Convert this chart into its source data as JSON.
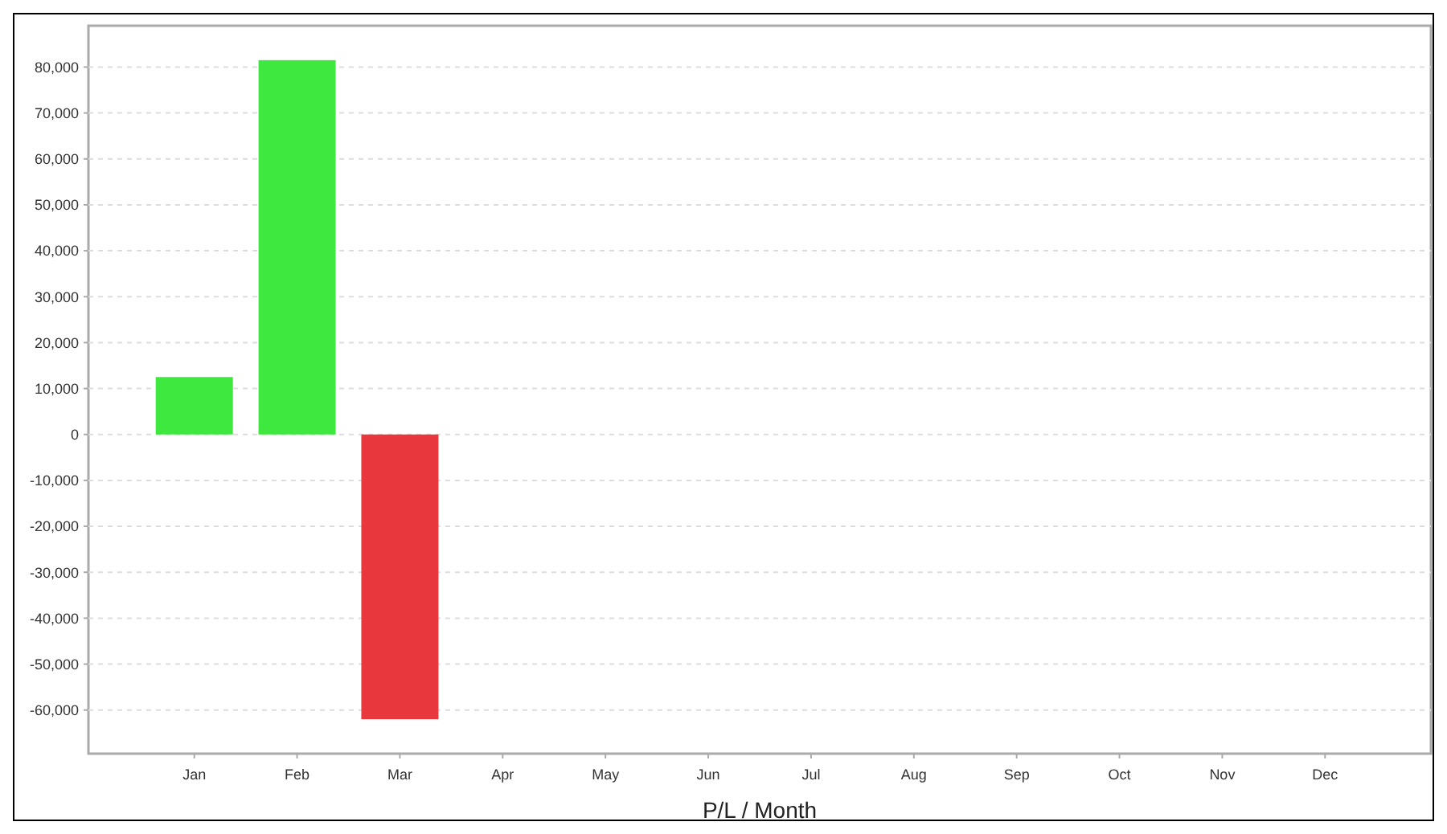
{
  "chart_data": {
    "type": "bar",
    "xlabel": "P/L / Month",
    "categories": [
      "Jan",
      "Feb",
      "Mar",
      "Apr",
      "May",
      "Jun",
      "Jul",
      "Aug",
      "Sep",
      "Oct",
      "Nov",
      "Dec"
    ],
    "values": [
      12500,
      81500,
      -62000,
      null,
      null,
      null,
      null,
      null,
      null,
      null,
      null,
      null
    ],
    "colors": [
      "#3ee83e",
      "#3ee83e",
      "#e8383d",
      null,
      null,
      null,
      null,
      null,
      null,
      null,
      null,
      null
    ],
    "ylim": [
      -69500,
      89000
    ],
    "yticks": [
      {
        "value": -60000,
        "label": "-60,000"
      },
      {
        "value": -50000,
        "label": "-50,000"
      },
      {
        "value": -40000,
        "label": "-40,000"
      },
      {
        "value": -30000,
        "label": "-30,000"
      },
      {
        "value": -20000,
        "label": "-20,000"
      },
      {
        "value": -10000,
        "label": "-10,000"
      },
      0,
      {
        "value": 10000,
        "label": "10,000"
      },
      {
        "value": 20000,
        "label": "20,000"
      },
      {
        "value": 30000,
        "label": "30,000"
      },
      {
        "value": 40000,
        "label": "40,000"
      },
      {
        "value": 50000,
        "label": "50,000"
      },
      {
        "value": 60000,
        "label": "60,000"
      },
      {
        "value": 70000,
        "label": "70,000"
      },
      {
        "value": 80000,
        "label": "80,000"
      }
    ],
    "grid": "y"
  }
}
